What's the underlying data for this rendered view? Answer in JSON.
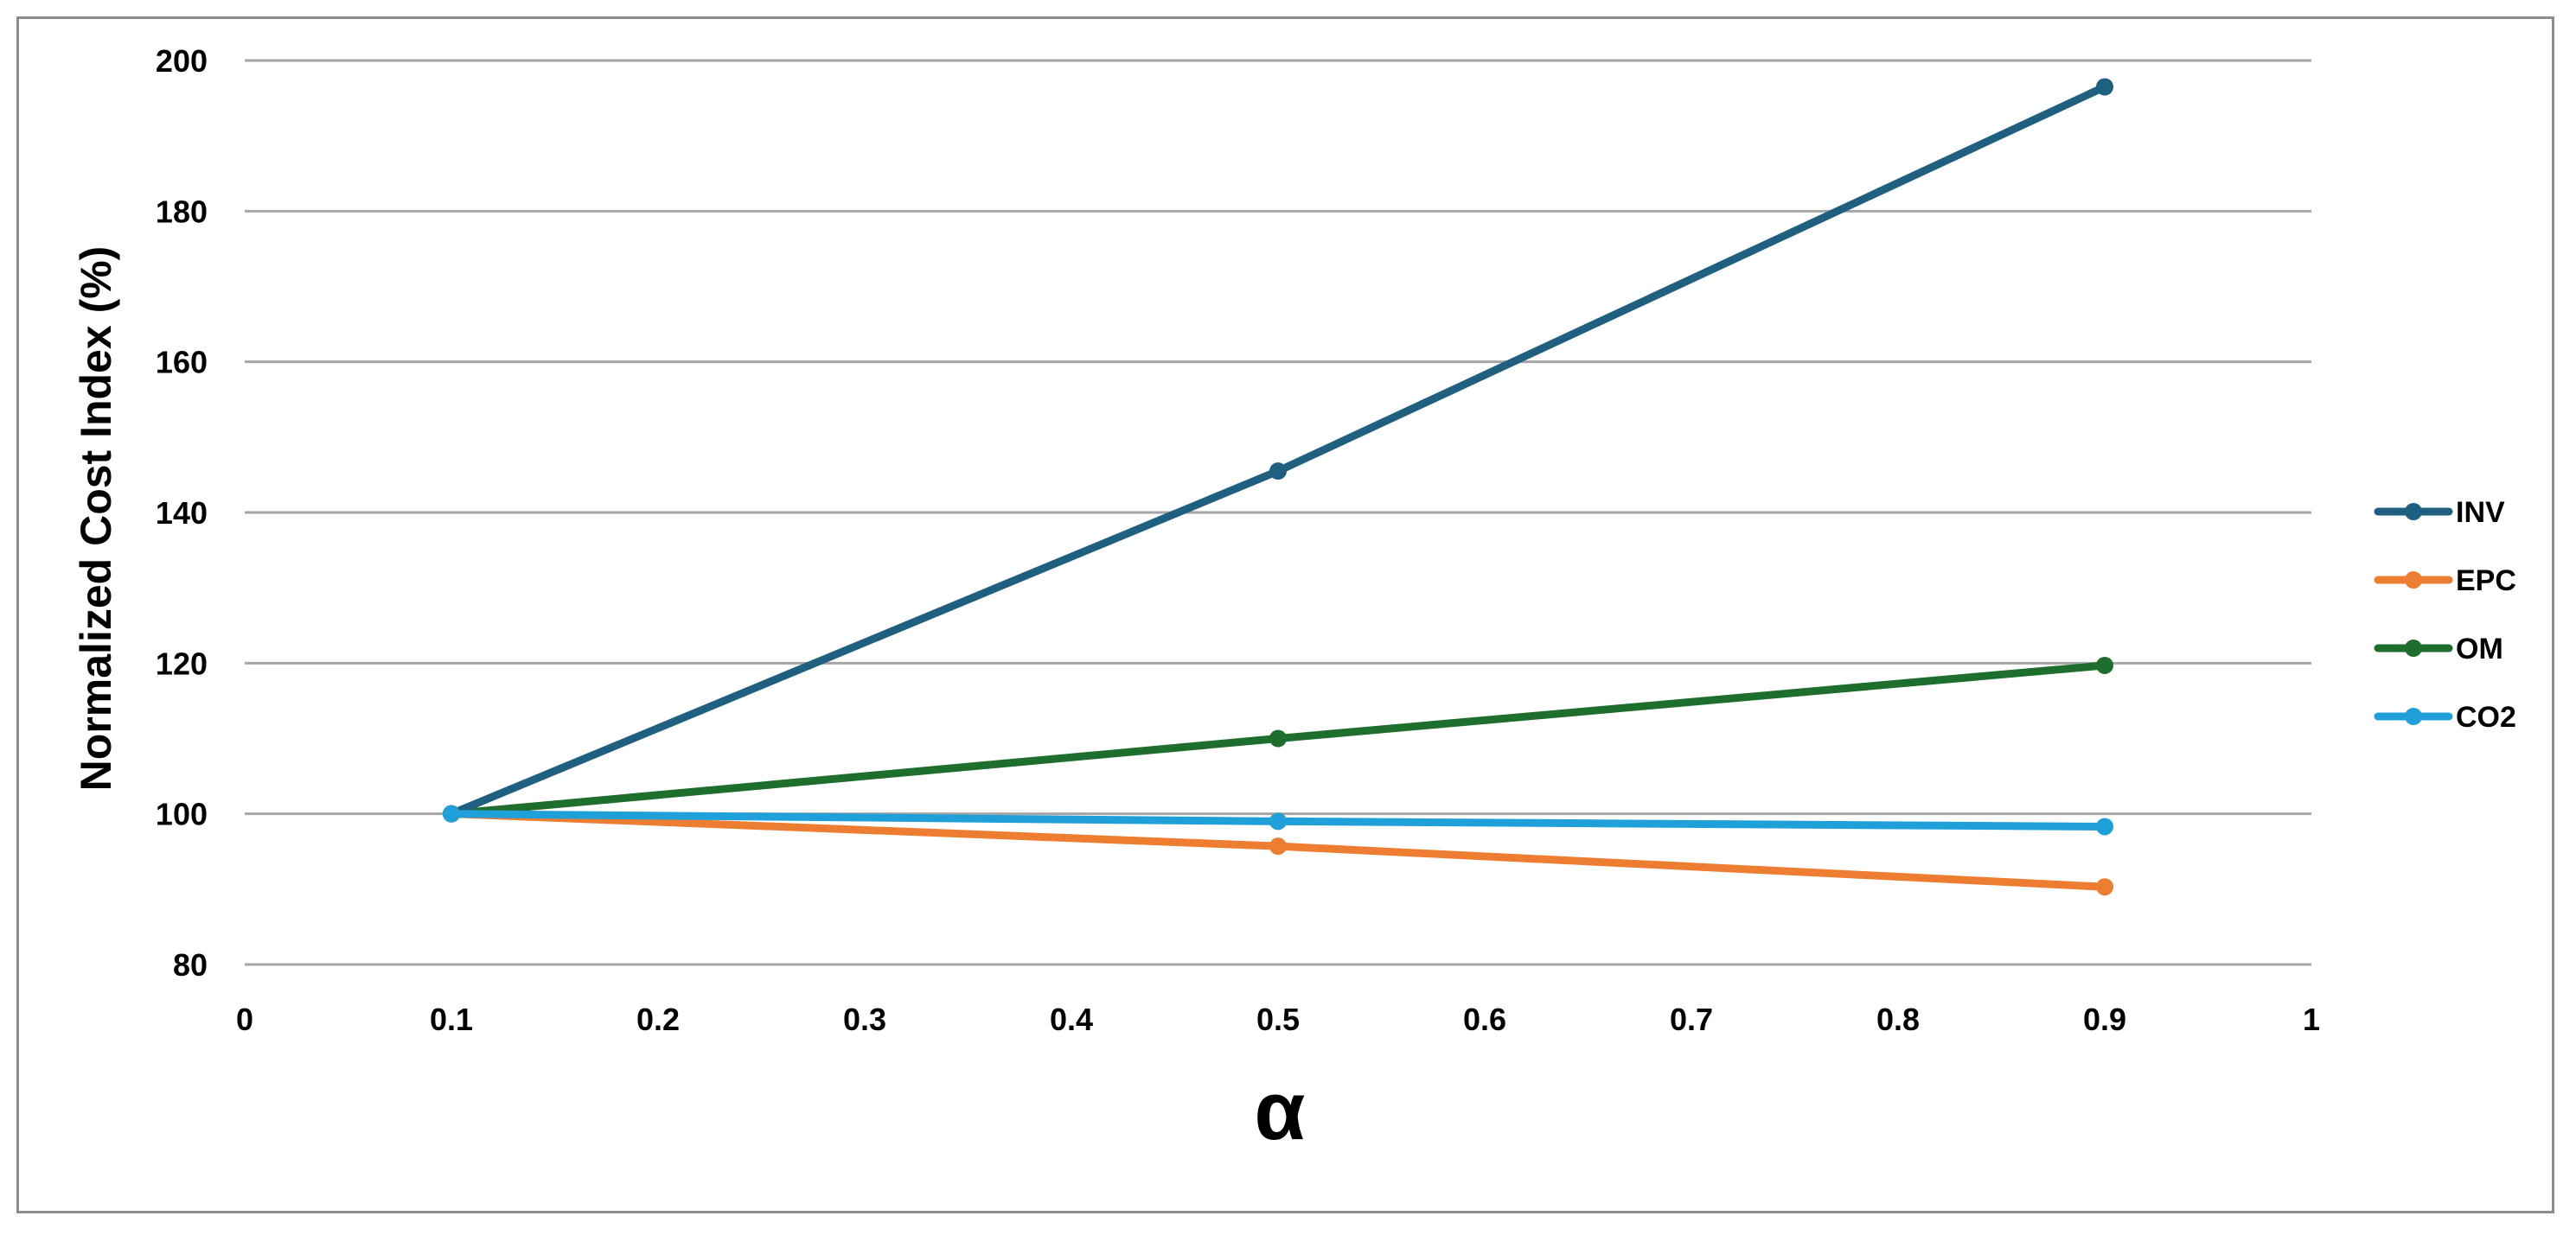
{
  "chart_data": {
    "type": "line",
    "title": "",
    "xlabel": "α",
    "ylabel": "Normalized Cost Index (%)",
    "xlim": [
      0,
      1
    ],
    "ylim": [
      80,
      200
    ],
    "x_ticks": [
      "0",
      "0.1",
      "0.2",
      "0.3",
      "0.4",
      "0.5",
      "0.6",
      "0.7",
      "0.8",
      "0.9",
      "1"
    ],
    "y_ticks": [
      "80",
      "100",
      "120",
      "140",
      "160",
      "180",
      "200"
    ],
    "grid": "horizontal",
    "legend_position": "right",
    "x": [
      0.1,
      0.5,
      0.9
    ],
    "series": [
      {
        "name": "INV",
        "values": [
          100,
          145.5,
          196.5
        ],
        "color": "#1f5f7f"
      },
      {
        "name": "EPC",
        "values": [
          100,
          95.7,
          90.3
        ],
        "color": "#ed7d31"
      },
      {
        "name": "OM",
        "values": [
          100,
          110,
          119.7
        ],
        "color": "#1e6e2e"
      },
      {
        "name": "CO2",
        "values": [
          100,
          99,
          98.3
        ],
        "color": "#20a0d8"
      }
    ]
  }
}
